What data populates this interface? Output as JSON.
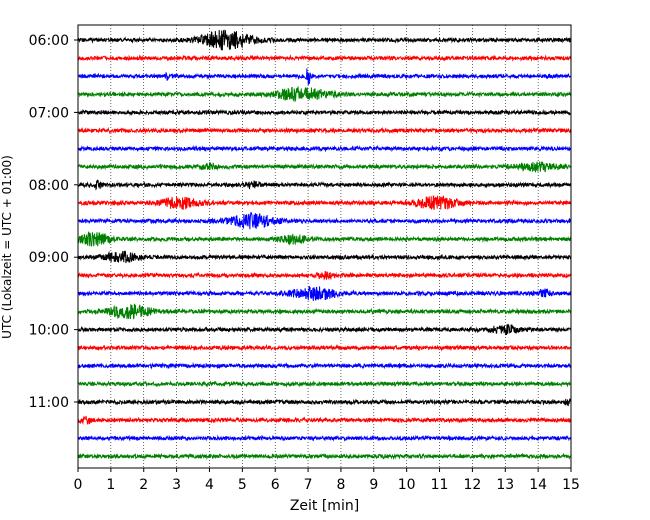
{
  "chart_data": {
    "type": "line",
    "title": "",
    "xlabel": "Zeit  [min]",
    "ylabel": "UTC (Lokalzeit = UTC + 01:00)",
    "xlim": [
      0,
      15
    ],
    "x_ticks": [
      0,
      1,
      2,
      3,
      4,
      5,
      6,
      7,
      8,
      9,
      10,
      11,
      12,
      13,
      14,
      15
    ],
    "y_tick_labels": [
      "06:00",
      "07:00",
      "08:00",
      "09:00",
      "10:00",
      "11:00"
    ],
    "grid": "vertical-dotted",
    "trace_interval_min": 15,
    "colors_cycle": [
      "#000000",
      "#ff0000",
      "#0000ff",
      "#008000"
    ],
    "traces": [
      {
        "start": "06:00",
        "color": "#000000",
        "events": [
          {
            "t": 4.5,
            "amp": 9,
            "dur": 1.6
          }
        ]
      },
      {
        "start": "06:15",
        "color": "#ff0000",
        "events": []
      },
      {
        "start": "06:30",
        "color": "#0000ff",
        "events": [
          {
            "t": 7.0,
            "amp": 12,
            "dur": 0.1
          },
          {
            "t": 2.7,
            "amp": 4,
            "dur": 0.1
          }
        ]
      },
      {
        "start": "06:45",
        "color": "#008000",
        "events": [
          {
            "t": 6.8,
            "amp": 6,
            "dur": 1.8
          }
        ]
      },
      {
        "start": "07:00",
        "color": "#000000",
        "events": []
      },
      {
        "start": "07:15",
        "color": "#ff0000",
        "events": []
      },
      {
        "start": "07:30",
        "color": "#0000ff",
        "events": []
      },
      {
        "start": "07:45",
        "color": "#008000",
        "events": [
          {
            "t": 14.0,
            "amp": 4,
            "dur": 1.4
          },
          {
            "t": 4.0,
            "amp": 3,
            "dur": 0.5
          }
        ]
      },
      {
        "start": "08:00",
        "color": "#000000",
        "events": [
          {
            "t": 0.6,
            "amp": 3,
            "dur": 0.4
          },
          {
            "t": 5.3,
            "amp": 3,
            "dur": 0.5
          }
        ]
      },
      {
        "start": "08:15",
        "color": "#ff0000",
        "events": [
          {
            "t": 3.1,
            "amp": 5,
            "dur": 1.3
          },
          {
            "t": 10.9,
            "amp": 6,
            "dur": 1.4
          }
        ]
      },
      {
        "start": "08:30",
        "color": "#0000ff",
        "events": [
          {
            "t": 5.3,
            "amp": 7,
            "dur": 1.4
          }
        ]
      },
      {
        "start": "08:45",
        "color": "#008000",
        "events": [
          {
            "t": 0.5,
            "amp": 6,
            "dur": 1.0
          },
          {
            "t": 6.6,
            "amp": 4,
            "dur": 0.9
          }
        ]
      },
      {
        "start": "09:00",
        "color": "#000000",
        "events": [
          {
            "t": 1.3,
            "amp": 5,
            "dur": 1.0
          }
        ]
      },
      {
        "start": "09:15",
        "color": "#ff0000",
        "events": [
          {
            "t": 7.5,
            "amp": 3,
            "dur": 0.5
          }
        ]
      },
      {
        "start": "09:30",
        "color": "#0000ff",
        "events": [
          {
            "t": 7.2,
            "amp": 6,
            "dur": 1.5
          },
          {
            "t": 14.2,
            "amp": 3,
            "dur": 0.5
          }
        ]
      },
      {
        "start": "09:45",
        "color": "#008000",
        "events": [
          {
            "t": 1.6,
            "amp": 6,
            "dur": 1.4
          }
        ]
      },
      {
        "start": "10:00",
        "color": "#000000",
        "events": [
          {
            "t": 13.0,
            "amp": 4,
            "dur": 0.9
          }
        ]
      },
      {
        "start": "10:15",
        "color": "#ff0000",
        "events": []
      },
      {
        "start": "10:30",
        "color": "#0000ff",
        "events": []
      },
      {
        "start": "10:45",
        "color": "#008000",
        "events": []
      },
      {
        "start": "11:00",
        "color": "#000000",
        "events": [
          {
            "t": 14.9,
            "amp": 3,
            "dur": 0.2
          }
        ]
      },
      {
        "start": "11:15",
        "color": "#ff0000",
        "events": [
          {
            "t": 0.2,
            "amp": 3,
            "dur": 0.4
          }
        ]
      },
      {
        "start": "11:30",
        "color": "#0000ff",
        "events": []
      },
      {
        "start": "11:45",
        "color": "#008000",
        "events": []
      }
    ]
  }
}
